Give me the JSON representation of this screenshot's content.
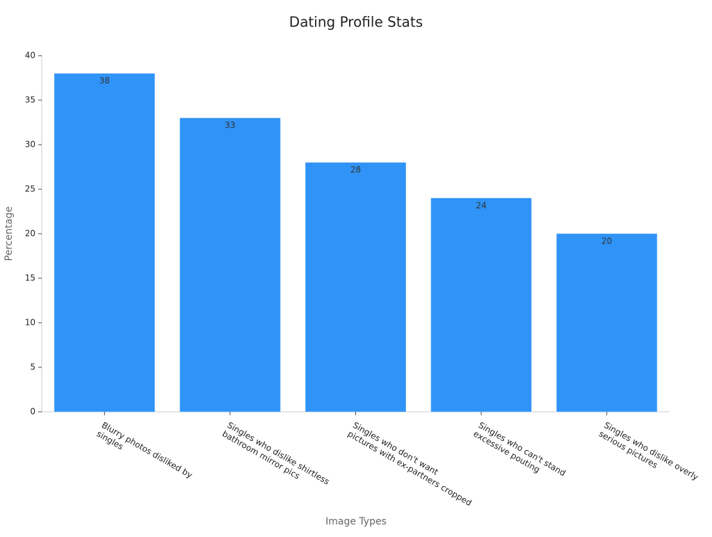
{
  "chart_data": {
    "type": "bar",
    "title": "Dating Profile Stats",
    "x_label": "Image Types",
    "y_label": "Percentage",
    "categories": [
      "Blurry photos disliked by\nsingles",
      "Singles who dislike shirtless\nbathroom mirror pics",
      "Singles who don't want\npictures with ex-partners cropped",
      "Singles who can't stand\nexcessive pouting",
      "Singles who dislike overly\nserious pictures"
    ],
    "values": [
      38,
      33,
      28,
      24,
      20
    ],
    "color": "#2f93f7",
    "ylim": [
      0,
      40
    ],
    "yticks": [
      0,
      5,
      10,
      15,
      20,
      25,
      30,
      35,
      40
    ],
    "grid": false
  }
}
